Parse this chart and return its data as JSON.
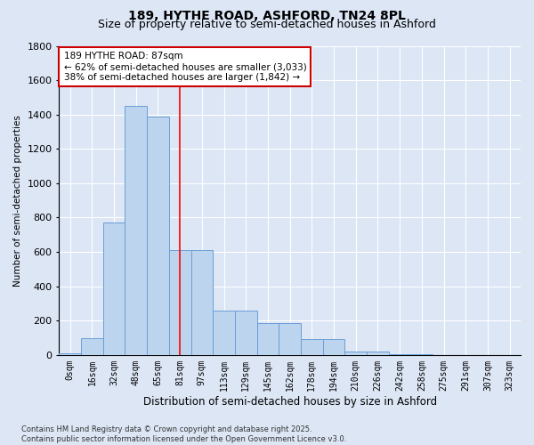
{
  "title": "189, HYTHE ROAD, ASHFORD, TN24 8PL",
  "subtitle": "Size of property relative to semi-detached houses in Ashford",
  "xlabel": "Distribution of semi-detached houses by size in Ashford",
  "ylabel": "Number of semi-detached properties",
  "bin_labels": [
    "0sqm",
    "16sqm",
    "32sqm",
    "48sqm",
    "65sqm",
    "81sqm",
    "97sqm",
    "113sqm",
    "129sqm",
    "145sqm",
    "162sqm",
    "178sqm",
    "194sqm",
    "210sqm",
    "226sqm",
    "242sqm",
    "258sqm",
    "275sqm",
    "291sqm",
    "307sqm",
    "323sqm"
  ],
  "bar_values": [
    10,
    100,
    770,
    1450,
    1390,
    610,
    610,
    260,
    260,
    185,
    185,
    90,
    90,
    20,
    20,
    5,
    2,
    0,
    0,
    0,
    0
  ],
  "bar_color": "#bcd4ee",
  "bar_edge_color": "#6a9fd8",
  "vline_x": 5.0,
  "annotation_line1": "189 HYTHE ROAD: 87sqm",
  "annotation_line2": "← 62% of semi-detached houses are smaller (3,033)",
  "annotation_line3": "38% of semi-detached houses are larger (1,842) →",
  "annotation_box_facecolor": "#ffffff",
  "annotation_box_edgecolor": "#cc0000",
  "footer_text": "Contains HM Land Registry data © Crown copyright and database right 2025.\nContains public sector information licensed under the Open Government Licence v3.0.",
  "ylim": [
    0,
    1800
  ],
  "yticks": [
    0,
    200,
    400,
    600,
    800,
    1000,
    1200,
    1400,
    1600,
    1800
  ],
  "bg_color": "#dce6f5",
  "title_fontsize": 10,
  "subtitle_fontsize": 9,
  "tick_fontsize": 7,
  "xlabel_fontsize": 8.5,
  "ylabel_fontsize": 7.5,
  "footer_fontsize": 6,
  "annot_fontsize": 7.5
}
